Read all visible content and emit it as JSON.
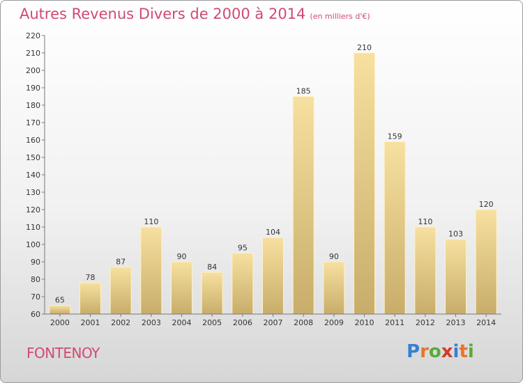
{
  "title": "Autres Revenus Divers de 2000 à 2014",
  "subtitle": "(en milliers d'€)",
  "location": "FONTENOY",
  "brand": {
    "text": "Proxiti",
    "colors": [
      "#3a7fd0",
      "#e8742a",
      "#5aaa3a",
      "#d23a2a",
      "#3a7fd0",
      "#e8742a",
      "#5aaa3a"
    ]
  },
  "chart_data": {
    "type": "bar",
    "categories": [
      "2000",
      "2001",
      "2002",
      "2003",
      "2004",
      "2005",
      "2006",
      "2007",
      "2008",
      "2009",
      "2010",
      "2011",
      "2012",
      "2013",
      "2014"
    ],
    "values": [
      65,
      78,
      87,
      110,
      90,
      84,
      95,
      104,
      185,
      90,
      210,
      159,
      110,
      103,
      120
    ],
    "ylim": [
      60,
      220
    ],
    "ytick_step": 10,
    "grid": false,
    "bar_color": "#e8cc82"
  }
}
